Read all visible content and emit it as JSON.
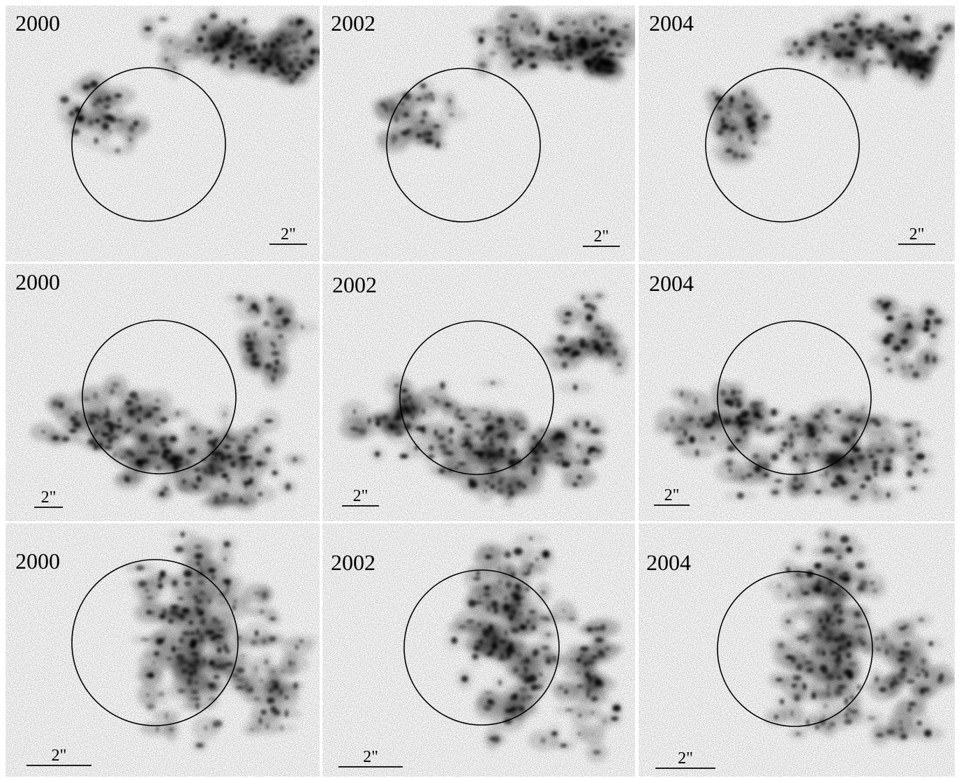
{
  "panels": [
    {
      "year": "2000",
      "scale_label": "2\""
    },
    {
      "year": "2002",
      "scale_label": "2\""
    },
    {
      "year": "2004",
      "scale_label": "2\""
    },
    {
      "year": "2000",
      "scale_label": "2\""
    },
    {
      "year": "2002",
      "scale_label": "2\""
    },
    {
      "year": "2004",
      "scale_label": "2\""
    },
    {
      "year": "2000",
      "scale_label": "2\""
    },
    {
      "year": "2002",
      "scale_label": "2\""
    },
    {
      "year": "2004",
      "scale_label": "2\""
    }
  ]
}
